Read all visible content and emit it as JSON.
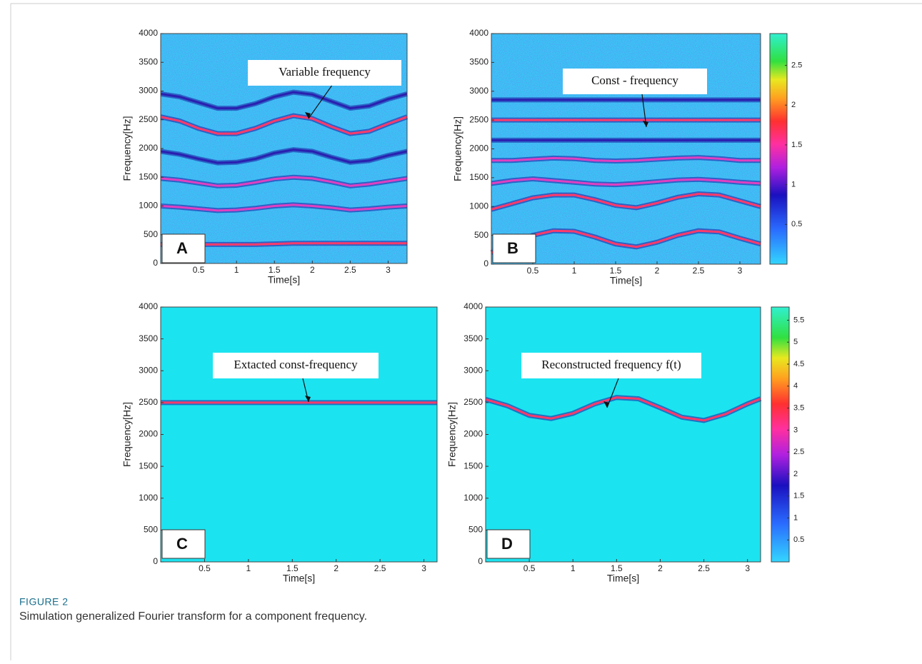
{
  "caption": {
    "label": "FIGURE 2",
    "text": "Simulation generalized Fourier transform for a component frequency."
  },
  "chart_data": [
    {
      "type": "spectrogram",
      "panel": "A",
      "annotation": "Variable frequency",
      "xlabel": "Time[s]",
      "ylabel": "Frequency[Hz]",
      "xlim": [
        0,
        3.25
      ],
      "ylim": [
        0,
        4000
      ],
      "xticks": [
        0.5,
        1,
        1.5,
        2,
        2.5,
        3
      ],
      "yticks": [
        0,
        500,
        1000,
        1500,
        2000,
        2500,
        3000,
        3500,
        4000
      ],
      "x": [
        0,
        0.25,
        0.5,
        0.75,
        1,
        1.25,
        1.5,
        1.75,
        2,
        2.25,
        2.5,
        2.75,
        3,
        3.25
      ],
      "series": [
        {
          "color": "#2a1fb0",
          "values": [
            2950,
            2900,
            2800,
            2700,
            2700,
            2780,
            2900,
            2980,
            2940,
            2820,
            2700,
            2740,
            2860,
            2950
          ]
        },
        {
          "color": "#ff3a6a",
          "values": [
            2550,
            2480,
            2350,
            2260,
            2260,
            2350,
            2480,
            2570,
            2520,
            2380,
            2260,
            2300,
            2430,
            2550
          ]
        },
        {
          "color": "#2a1fb0",
          "values": [
            1950,
            1900,
            1820,
            1750,
            1760,
            1820,
            1920,
            1980,
            1950,
            1850,
            1760,
            1790,
            1880,
            1950
          ]
        },
        {
          "color": "#e040c0",
          "values": [
            1480,
            1450,
            1400,
            1350,
            1360,
            1410,
            1470,
            1500,
            1480,
            1420,
            1350,
            1380,
            1430,
            1480
          ]
        },
        {
          "color": "#e040c0",
          "values": [
            1000,
            980,
            950,
            920,
            930,
            960,
            1000,
            1020,
            1000,
            970,
            930,
            950,
            980,
            1000
          ]
        },
        {
          "color": "#ff3a6a",
          "values": [
            330,
            330,
            330,
            330,
            330,
            330,
            340,
            350,
            350,
            350,
            350,
            350,
            350,
            350
          ]
        }
      ]
    },
    {
      "type": "spectrogram",
      "panel": "B",
      "annotation": "Const - frequency",
      "xlabel": "Time[s]",
      "ylabel": "Frequency[Hz]",
      "xlim": [
        0,
        3.25
      ],
      "ylim": [
        0,
        4000
      ],
      "xticks": [
        0.5,
        1,
        1.5,
        2,
        2.5,
        3
      ],
      "yticks": [
        0,
        500,
        1000,
        1500,
        2000,
        2500,
        3000,
        3500,
        4000
      ],
      "clim": [
        0,
        2.9
      ],
      "cticks": [
        0.5,
        1,
        1.5,
        2,
        2.5
      ],
      "x": [
        0,
        0.25,
        0.5,
        0.75,
        1,
        1.25,
        1.5,
        1.75,
        2,
        2.25,
        2.5,
        2.75,
        3,
        3.25
      ],
      "series": [
        {
          "color": "#2a1fb0",
          "values": [
            2850,
            2850,
            2850,
            2850,
            2850,
            2850,
            2850,
            2850,
            2850,
            2850,
            2850,
            2850,
            2850,
            2850
          ]
        },
        {
          "color": "#ff3a6a",
          "values": [
            2500,
            2500,
            2500,
            2500,
            2500,
            2500,
            2500,
            2500,
            2500,
            2500,
            2500,
            2500,
            2500,
            2500
          ]
        },
        {
          "color": "#2a1fb0",
          "values": [
            2150,
            2150,
            2150,
            2150,
            2150,
            2150,
            2150,
            2150,
            2150,
            2150,
            2150,
            2150,
            2150,
            2150
          ]
        },
        {
          "color": "#e040c0",
          "values": [
            1800,
            1800,
            1820,
            1840,
            1830,
            1800,
            1790,
            1800,
            1820,
            1840,
            1850,
            1830,
            1800,
            1800
          ]
        },
        {
          "color": "#e040c0",
          "values": [
            1400,
            1450,
            1480,
            1450,
            1420,
            1390,
            1380,
            1400,
            1430,
            1460,
            1470,
            1450,
            1420,
            1400
          ]
        },
        {
          "color": "#ff3a6a",
          "values": [
            950,
            1050,
            1150,
            1200,
            1200,
            1120,
            1020,
            980,
            1060,
            1160,
            1220,
            1200,
            1100,
            1000
          ]
        },
        {
          "color": "#ff3a6a",
          "values": [
            200,
            350,
            500,
            580,
            570,
            470,
            350,
            300,
            380,
            500,
            580,
            560,
            450,
            350
          ]
        }
      ]
    },
    {
      "type": "spectrogram",
      "panel": "C",
      "annotation": "Extacted const-frequency",
      "xlabel": "Time[s]",
      "ylabel": "Frequency[Hz]",
      "xlim": [
        0,
        3.15
      ],
      "ylim": [
        0,
        4000
      ],
      "xticks": [
        0.5,
        1,
        1.5,
        2,
        2.5,
        3
      ],
      "yticks": [
        0,
        500,
        1000,
        1500,
        2000,
        2500,
        3000,
        3500,
        4000
      ],
      "x": [
        0,
        0.25,
        0.5,
        0.75,
        1,
        1.25,
        1.5,
        1.75,
        2,
        2.25,
        2.5,
        2.75,
        3,
        3.15
      ],
      "series": [
        {
          "color": "#ff3a6a",
          "values": [
            2500,
            2500,
            2500,
            2500,
            2500,
            2500,
            2500,
            2500,
            2500,
            2500,
            2500,
            2500,
            2500,
            2500
          ]
        }
      ]
    },
    {
      "type": "spectrogram",
      "panel": "D",
      "annotation": "Reconstructed frequency f(t)",
      "xlabel": "Time[s]",
      "ylabel": "Frequency[Hz]",
      "xlim": [
        0,
        3.15
      ],
      "ylim": [
        0,
        4000
      ],
      "xticks": [
        0.5,
        1,
        1.5,
        2,
        2.5,
        3
      ],
      "yticks": [
        0,
        500,
        1000,
        1500,
        2000,
        2500,
        3000,
        3500,
        4000
      ],
      "clim": [
        0,
        5.8
      ],
      "cticks": [
        0.5,
        1,
        1.5,
        2,
        2.5,
        3,
        3.5,
        4,
        4.5,
        5,
        5.5
      ],
      "x": [
        0,
        0.25,
        0.5,
        0.75,
        1,
        1.25,
        1.5,
        1.75,
        2,
        2.25,
        2.5,
        2.75,
        3,
        3.15
      ],
      "series": [
        {
          "color": "#ff3a6a",
          "values": [
            2550,
            2450,
            2300,
            2250,
            2330,
            2480,
            2580,
            2560,
            2420,
            2270,
            2220,
            2320,
            2480,
            2560
          ]
        }
      ]
    }
  ]
}
